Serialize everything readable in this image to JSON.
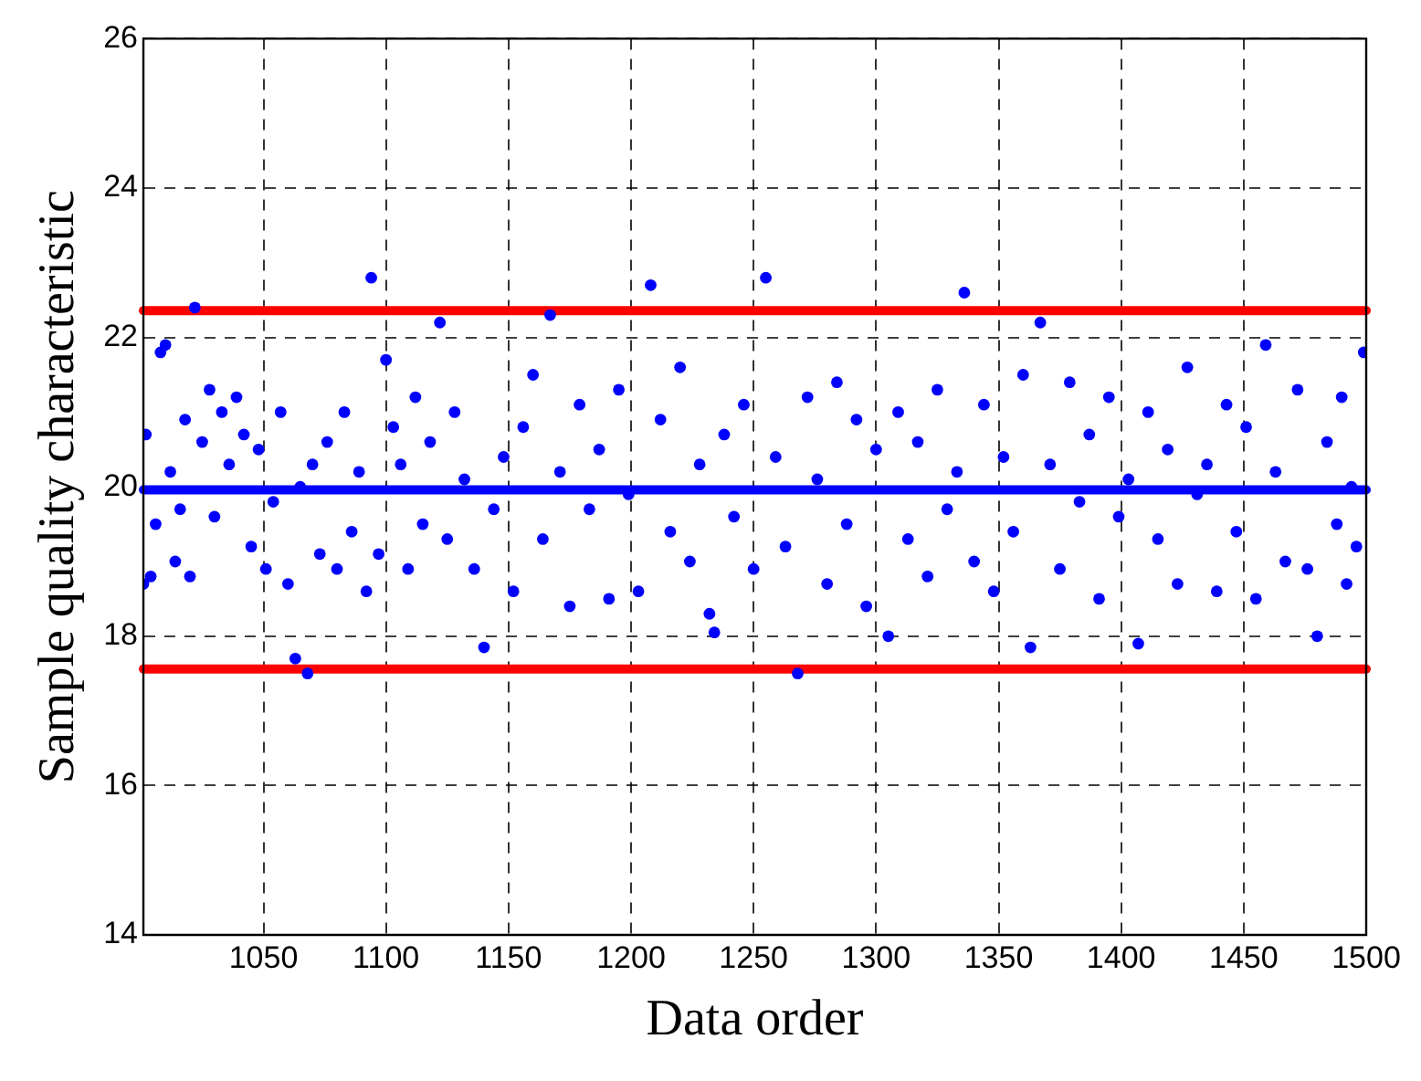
{
  "chart_data": {
    "type": "scatter",
    "xlabel": "Data order",
    "ylabel": "Sample quality characteristic",
    "xlim": [
      1001,
      1500
    ],
    "ylim": [
      14,
      26
    ],
    "xticks": [
      1050,
      1100,
      1150,
      1200,
      1250,
      1300,
      1350,
      1400,
      1450,
      1500
    ],
    "yticks": [
      14,
      16,
      18,
      20,
      22,
      24,
      26
    ],
    "grid": true,
    "marker": "circle",
    "ref_lines": [
      {
        "axis": "y",
        "value": 22.36,
        "color": "#ff0000"
      },
      {
        "axis": "y",
        "value": 17.56,
        "color": "#ff0000"
      },
      {
        "axis": "y",
        "value": 19.96,
        "color": "#0000ff"
      }
    ],
    "series": [
      {
        "color": "#0000ff",
        "x": [
          1001,
          1002,
          1004,
          1006,
          1008,
          1010,
          1012,
          1014,
          1016,
          1018,
          1020,
          1022,
          1025,
          1028,
          1030,
          1033,
          1036,
          1039,
          1042,
          1045,
          1048,
          1051,
          1054,
          1057,
          1060,
          1063,
          1065,
          1068,
          1070,
          1073,
          1076,
          1080,
          1083,
          1086,
          1089,
          1092,
          1094,
          1097,
          1100,
          1103,
          1106,
          1109,
          1112,
          1115,
          1118,
          1122,
          1125,
          1128,
          1132,
          1136,
          1140,
          1144,
          1148,
          1152,
          1156,
          1160,
          1164,
          1167,
          1171,
          1175,
          1179,
          1183,
          1187,
          1191,
          1195,
          1199,
          1203,
          1208,
          1212,
          1216,
          1220,
          1224,
          1228,
          1232,
          1234,
          1238,
          1242,
          1246,
          1250,
          1255,
          1259,
          1263,
          1268,
          1272,
          1276,
          1280,
          1284,
          1288,
          1292,
          1296,
          1300,
          1305,
          1309,
          1313,
          1317,
          1321,
          1325,
          1329,
          1333,
          1336,
          1340,
          1344,
          1348,
          1352,
          1356,
          1360,
          1363,
          1367,
          1371,
          1375,
          1379,
          1383,
          1387,
          1391,
          1395,
          1399,
          1403,
          1407,
          1411,
          1415,
          1419,
          1423,
          1427,
          1431,
          1435,
          1439,
          1443,
          1447,
          1451,
          1455,
          1459,
          1463,
          1467,
          1472,
          1476,
          1480,
          1484,
          1488,
          1490,
          1492,
          1494,
          1496,
          1499
        ],
        "values": [
          18.7,
          20.7,
          18.8,
          19.5,
          21.8,
          21.9,
          20.2,
          19.0,
          19.7,
          20.9,
          18.8,
          22.4,
          20.6,
          21.3,
          19.6,
          21.0,
          20.3,
          21.2,
          20.7,
          19.2,
          20.5,
          18.9,
          19.8,
          21.0,
          18.7,
          17.7,
          20.0,
          17.5,
          20.3,
          19.1,
          20.6,
          18.9,
          21.0,
          19.4,
          20.2,
          18.6,
          22.8,
          19.1,
          21.7,
          20.8,
          20.3,
          18.9,
          21.2,
          19.5,
          20.6,
          22.2,
          19.3,
          21.0,
          20.1,
          18.9,
          17.85,
          19.7,
          20.4,
          18.6,
          20.8,
          21.5,
          19.3,
          22.3,
          20.2,
          18.4,
          21.1,
          19.7,
          20.5,
          18.5,
          21.3,
          19.9,
          18.6,
          22.7,
          20.9,
          19.4,
          21.6,
          19.0,
          20.3,
          18.3,
          18.05,
          20.7,
          19.6,
          21.1,
          18.9,
          22.8,
          20.4,
          19.2,
          17.5,
          21.2,
          20.1,
          18.7,
          21.4,
          19.5,
          20.9,
          18.4,
          20.5,
          18.0,
          21.0,
          19.3,
          20.6,
          18.8,
          21.3,
          19.7,
          20.2,
          22.6,
          19.0,
          21.1,
          18.6,
          20.4,
          19.4,
          21.5,
          17.85,
          22.2,
          20.3,
          18.9,
          21.4,
          19.8,
          20.7,
          18.5,
          21.2,
          19.6,
          20.1,
          17.9,
          21.0,
          19.3,
          20.5,
          18.7,
          21.6,
          19.9,
          20.3,
          18.6,
          21.1,
          19.4,
          20.8,
          18.5,
          21.9,
          20.2,
          19.0,
          21.3,
          18.9,
          18.0,
          20.6,
          19.5,
          21.2,
          18.7,
          20.0,
          19.2,
          21.8
        ]
      }
    ]
  }
}
